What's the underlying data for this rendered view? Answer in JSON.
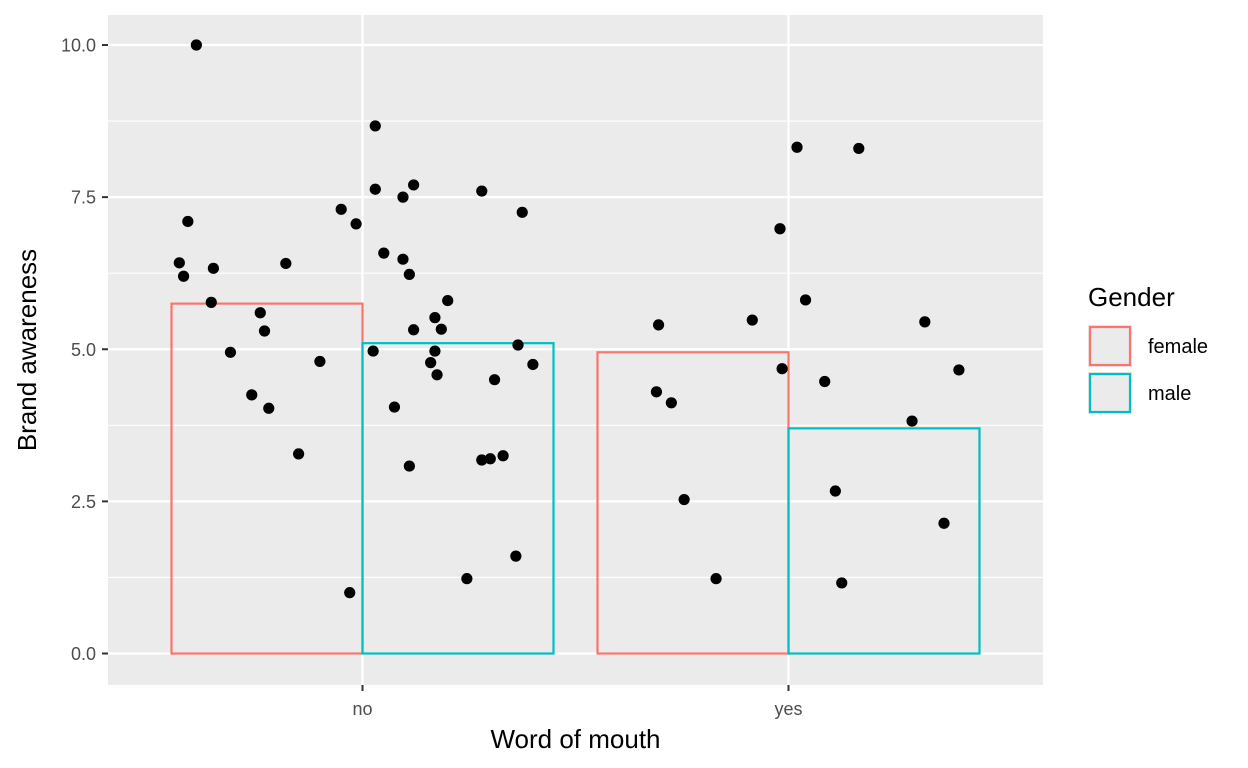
{
  "chart_data": {
    "type": "bar",
    "xlabel": "Word of mouth",
    "ylabel": "Brand awareness",
    "categories": [
      "no",
      "yes"
    ],
    "ylim": [
      -0.5,
      10.5
    ],
    "y_ticks": [
      0.0,
      2.5,
      5.0,
      7.5,
      10.0
    ],
    "y_tick_labels": [
      "0.0",
      "2.5",
      "5.0",
      "7.5",
      "10.0"
    ],
    "grid": true,
    "legend": {
      "title": "Gender",
      "placement": "right",
      "entries": [
        "female",
        "male"
      ]
    },
    "series": [
      {
        "name": "female",
        "color": "#F8766D",
        "values": [
          5.75,
          4.95
        ]
      },
      {
        "name": "male",
        "color": "#00BFC4",
        "values": [
          5.1,
          3.7
        ]
      }
    ],
    "points": {
      "no": [
        {
          "x": -0.39,
          "y": 10.0
        },
        {
          "x": -0.41,
          "y": 7.1
        },
        {
          "x": -0.43,
          "y": 6.42
        },
        {
          "x": -0.42,
          "y": 6.2
        },
        {
          "x": -0.35,
          "y": 6.33
        },
        {
          "x": -0.18,
          "y": 6.41
        },
        {
          "x": -0.355,
          "y": 5.77
        },
        {
          "x": -0.24,
          "y": 5.6
        },
        {
          "x": -0.23,
          "y": 5.3
        },
        {
          "x": -0.31,
          "y": 4.95
        },
        {
          "x": -0.26,
          "y": 4.25
        },
        {
          "x": -0.22,
          "y": 4.03
        },
        {
          "x": -0.1,
          "y": 4.8
        },
        {
          "x": -0.15,
          "y": 3.28
        },
        {
          "x": -0.05,
          "y": 7.3
        },
        {
          "x": -0.015,
          "y": 7.06
        },
        {
          "x": -0.03,
          "y": 1.0
        },
        {
          "x": 0.03,
          "y": 8.67
        },
        {
          "x": 0.03,
          "y": 7.63
        },
        {
          "x": 0.12,
          "y": 7.7
        },
        {
          "x": 0.095,
          "y": 7.5
        },
        {
          "x": 0.05,
          "y": 6.58
        },
        {
          "x": 0.095,
          "y": 6.48
        },
        {
          "x": 0.11,
          "y": 6.23
        },
        {
          "x": 0.12,
          "y": 5.32
        },
        {
          "x": 0.2,
          "y": 5.8
        },
        {
          "x": 0.17,
          "y": 5.52
        },
        {
          "x": 0.185,
          "y": 5.33
        },
        {
          "x": 0.025,
          "y": 4.97
        },
        {
          "x": 0.17,
          "y": 4.97
        },
        {
          "x": 0.16,
          "y": 4.78
        },
        {
          "x": 0.175,
          "y": 4.58
        },
        {
          "x": 0.075,
          "y": 4.05
        },
        {
          "x": 0.11,
          "y": 3.08
        },
        {
          "x": 0.28,
          "y": 7.6
        },
        {
          "x": 0.375,
          "y": 7.25
        },
        {
          "x": 0.365,
          "y": 5.07
        },
        {
          "x": 0.4,
          "y": 4.75
        },
        {
          "x": 0.31,
          "y": 4.5
        },
        {
          "x": 0.28,
          "y": 3.18
        },
        {
          "x": 0.3,
          "y": 3.2
        },
        {
          "x": 0.33,
          "y": 3.25
        },
        {
          "x": 0.36,
          "y": 1.6
        },
        {
          "x": 0.245,
          "y": 1.23
        }
      ],
      "yes": [
        {
          "x": -0.305,
          "y": 5.4
        },
        {
          "x": -0.31,
          "y": 4.3
        },
        {
          "x": -0.275,
          "y": 4.12
        },
        {
          "x": -0.245,
          "y": 2.53
        },
        {
          "x": -0.17,
          "y": 1.23
        },
        {
          "x": -0.085,
          "y": 5.48
        },
        {
          "x": -0.02,
          "y": 6.98
        },
        {
          "x": -0.015,
          "y": 4.68
        },
        {
          "x": 0.02,
          "y": 8.32
        },
        {
          "x": 0.04,
          "y": 5.81
        },
        {
          "x": 0.165,
          "y": 8.3
        },
        {
          "x": 0.085,
          "y": 4.47
        },
        {
          "x": 0.11,
          "y": 2.67
        },
        {
          "x": 0.125,
          "y": 1.16
        },
        {
          "x": 0.32,
          "y": 5.45
        },
        {
          "x": 0.29,
          "y": 3.82
        },
        {
          "x": 0.4,
          "y": 4.66
        },
        {
          "x": 0.365,
          "y": 2.14
        }
      ]
    }
  }
}
